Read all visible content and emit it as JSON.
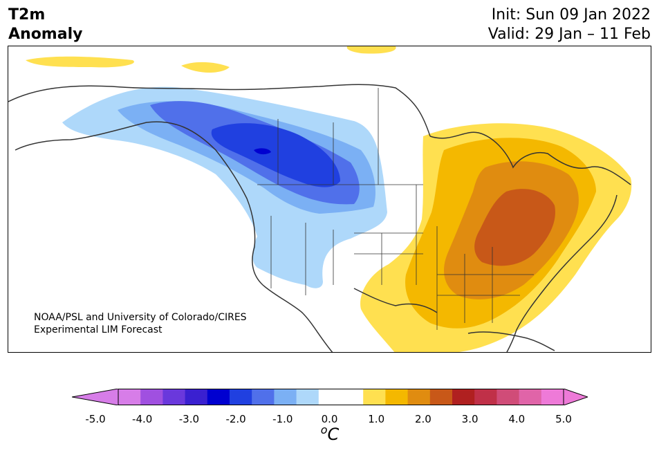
{
  "header": {
    "title_line1": "T2m",
    "title_line2": "Anomaly",
    "init": "Init: Sun 09 Jan 2022",
    "valid": "Valid: 29 Jan – 11 Feb"
  },
  "credit": {
    "line1": "NOAA/PSL and University of Colorado/CIRES",
    "line2": "Experimental LIM Forecast"
  },
  "colorbar": {
    "unit_base": "C",
    "unit_sup": "o",
    "ticks": [
      "-5.0",
      "-4.0",
      "-3.0",
      "-2.0",
      "-1.0",
      "0.0",
      "1.0",
      "2.0",
      "3.0",
      "4.0",
      "5.0"
    ],
    "colors": [
      "#d77de8",
      "#a050e0",
      "#6a38dc",
      "#3a20d0",
      "#0000d0",
      "#2040e0",
      "#5070ea",
      "#7bb0f4",
      "#aed8fa",
      "#ffffff",
      "#ffffff",
      "#ffe050",
      "#f4b800",
      "#e08c10",
      "#c85818",
      "#b02020",
      "#c03048",
      "#d04c78",
      "#e064a8",
      "#ee7ad8"
    ],
    "extend_low_color": "#d77de8",
    "extend_high_color": "#ee7ad8"
  },
  "map": {
    "region": "North America",
    "palette": {
      "light_blue": "#aed8fa",
      "mid_blue": "#7bb0f4",
      "blue": "#5070ea",
      "deep_blue": "#2040e0",
      "darkest_blue": "#0000d0",
      "yellow": "#ffe050",
      "gold": "#f4b800",
      "orange": "#e08c10",
      "dark_orange": "#c85818",
      "coast": "#333333"
    }
  }
}
